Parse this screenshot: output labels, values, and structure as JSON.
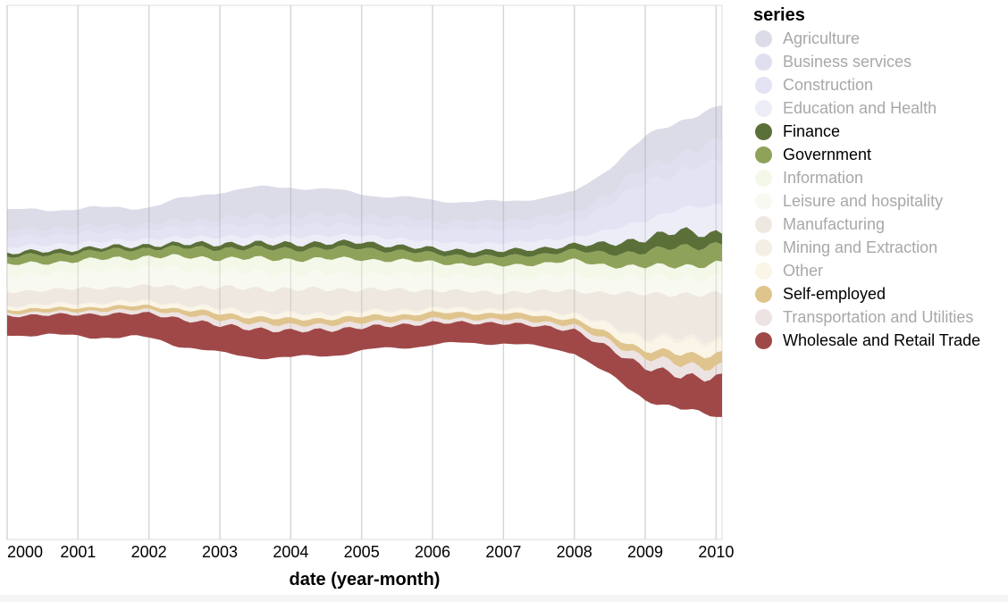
{
  "chart_data": {
    "type": "area",
    "subtype": "streamgraph",
    "title": "",
    "xlabel": "date (year-month)",
    "ylabel": "",
    "x_ticks": [
      "2000",
      "2001",
      "2002",
      "2003",
      "2004",
      "2005",
      "2006",
      "2007",
      "2008",
      "2009",
      "2010"
    ],
    "x_range": [
      "2000-01",
      "2010-02"
    ],
    "grid": "vertical",
    "legend": {
      "title": "series",
      "position": "right"
    },
    "selected_series": [
      "Finance",
      "Government",
      "Self-employed",
      "Wholesale and Retail Trade"
    ],
    "series": [
      {
        "name": "Agriculture",
        "color": "#b2b2cc",
        "anchors": [
          [
            0,
            40
          ],
          [
            24,
            35
          ],
          [
            36,
            55
          ],
          [
            48,
            60
          ],
          [
            60,
            45
          ],
          [
            72,
            42
          ],
          [
            84,
            38
          ],
          [
            96,
            42
          ],
          [
            108,
            62
          ],
          [
            114,
            70
          ],
          [
            121,
            72
          ]
        ]
      },
      {
        "name": "Business services",
        "color": "#b8b8dc",
        "anchors": [
          [
            0,
            15
          ],
          [
            24,
            12
          ],
          [
            36,
            16
          ],
          [
            48,
            20
          ],
          [
            60,
            18
          ],
          [
            72,
            16
          ],
          [
            84,
            18
          ],
          [
            96,
            18
          ],
          [
            108,
            30
          ],
          [
            114,
            35
          ],
          [
            121,
            40
          ]
        ]
      },
      {
        "name": "Construction",
        "color": "#c2c2e6",
        "anchors": [
          [
            0,
            20
          ],
          [
            24,
            18
          ],
          [
            36,
            22
          ],
          [
            48,
            22
          ],
          [
            60,
            22
          ],
          [
            72,
            26
          ],
          [
            84,
            28
          ],
          [
            96,
            30
          ],
          [
            108,
            75
          ],
          [
            114,
            78
          ],
          [
            121,
            85
          ]
        ]
      },
      {
        "name": "Education and Health",
        "color": "#d6d6f0",
        "anchors": [
          [
            0,
            12
          ],
          [
            24,
            12
          ],
          [
            36,
            14
          ],
          [
            48,
            15
          ],
          [
            60,
            14
          ],
          [
            72,
            15
          ],
          [
            84,
            16
          ],
          [
            96,
            16
          ],
          [
            108,
            38
          ],
          [
            114,
            45
          ],
          [
            121,
            60
          ]
        ]
      },
      {
        "name": "Finance",
        "color": "#5b7038",
        "anchors": [
          [
            0,
            8
          ],
          [
            24,
            7
          ],
          [
            36,
            10
          ],
          [
            48,
            11
          ],
          [
            60,
            12
          ],
          [
            72,
            10
          ],
          [
            84,
            12
          ],
          [
            96,
            12
          ],
          [
            108,
            28
          ],
          [
            114,
            32
          ],
          [
            121,
            22
          ]
        ]
      },
      {
        "name": "Government",
        "color": "#8ea25a",
        "anchors": [
          [
            0,
            16
          ],
          [
            24,
            17
          ],
          [
            36,
            20
          ],
          [
            48,
            21
          ],
          [
            60,
            22
          ],
          [
            72,
            17
          ],
          [
            84,
            18
          ],
          [
            96,
            20
          ],
          [
            108,
            30
          ],
          [
            114,
            38
          ],
          [
            121,
            40
          ]
        ]
      },
      {
        "name": "Information",
        "color": "#e6efcc",
        "anchors": [
          [
            0,
            22
          ],
          [
            24,
            22
          ],
          [
            36,
            27
          ],
          [
            48,
            28
          ],
          [
            60,
            30
          ],
          [
            72,
            25
          ],
          [
            84,
            26
          ],
          [
            96,
            28
          ],
          [
            108,
            22
          ],
          [
            114,
            24
          ],
          [
            121,
            30
          ]
        ]
      },
      {
        "name": "Leisure and hospitality",
        "color": "#eff5e0",
        "anchors": [
          [
            0,
            32
          ],
          [
            24,
            38
          ],
          [
            36,
            33
          ],
          [
            48,
            33
          ],
          [
            60,
            32
          ],
          [
            72,
            32
          ],
          [
            84,
            28
          ],
          [
            96,
            32
          ],
          [
            108,
            32
          ],
          [
            114,
            35
          ],
          [
            121,
            32
          ]
        ]
      },
      {
        "name": "Manufacturing",
        "color": "#d9cdbc",
        "anchors": [
          [
            0,
            28
          ],
          [
            24,
            30
          ],
          [
            36,
            42
          ],
          [
            48,
            50
          ],
          [
            60,
            45
          ],
          [
            72,
            36
          ],
          [
            84,
            32
          ],
          [
            96,
            45
          ],
          [
            108,
            85
          ],
          [
            114,
            90
          ],
          [
            121,
            88
          ]
        ]
      },
      {
        "name": "Mining and Extraction",
        "color": "#e6dcc4",
        "anchors": [
          [
            0,
            2
          ],
          [
            24,
            2
          ],
          [
            36,
            2
          ],
          [
            48,
            2
          ],
          [
            60,
            2
          ],
          [
            72,
            2
          ],
          [
            84,
            2
          ],
          [
            96,
            3
          ],
          [
            108,
            6
          ],
          [
            114,
            8
          ],
          [
            121,
            6
          ]
        ]
      },
      {
        "name": "Other",
        "color": "#f3e8c8",
        "anchors": [
          [
            0,
            7
          ],
          [
            24,
            8
          ],
          [
            36,
            9
          ],
          [
            48,
            10
          ],
          [
            60,
            9
          ],
          [
            72,
            8
          ],
          [
            84,
            8
          ],
          [
            96,
            10
          ],
          [
            108,
            22
          ],
          [
            114,
            26
          ],
          [
            121,
            24
          ]
        ]
      },
      {
        "name": "Self-employed",
        "color": "#e0c48e",
        "anchors": [
          [
            0,
            7
          ],
          [
            24,
            8
          ],
          [
            36,
            12
          ],
          [
            48,
            12
          ],
          [
            60,
            12
          ],
          [
            72,
            12
          ],
          [
            84,
            12
          ],
          [
            96,
            12
          ],
          [
            108,
            15
          ],
          [
            114,
            20
          ],
          [
            121,
            28
          ]
        ]
      },
      {
        "name": "Transportation and Utilities",
        "color": "#d8c2c2",
        "anchors": [
          [
            0,
            5
          ],
          [
            24,
            8
          ],
          [
            36,
            12
          ],
          [
            48,
            12
          ],
          [
            60,
            10
          ],
          [
            72,
            8
          ],
          [
            84,
            8
          ],
          [
            96,
            10
          ],
          [
            108,
            20
          ],
          [
            114,
            24
          ],
          [
            121,
            22
          ]
        ]
      },
      {
        "name": "Wholesale and Retail Trade",
        "color": "#a04848",
        "anchors": [
          [
            0,
            38
          ],
          [
            24,
            50
          ],
          [
            36,
            58
          ],
          [
            48,
            55
          ],
          [
            60,
            48
          ],
          [
            72,
            44
          ],
          [
            84,
            40
          ],
          [
            96,
            45
          ],
          [
            108,
            65
          ],
          [
            114,
            68
          ],
          [
            121,
            80
          ]
        ]
      }
    ]
  }
}
